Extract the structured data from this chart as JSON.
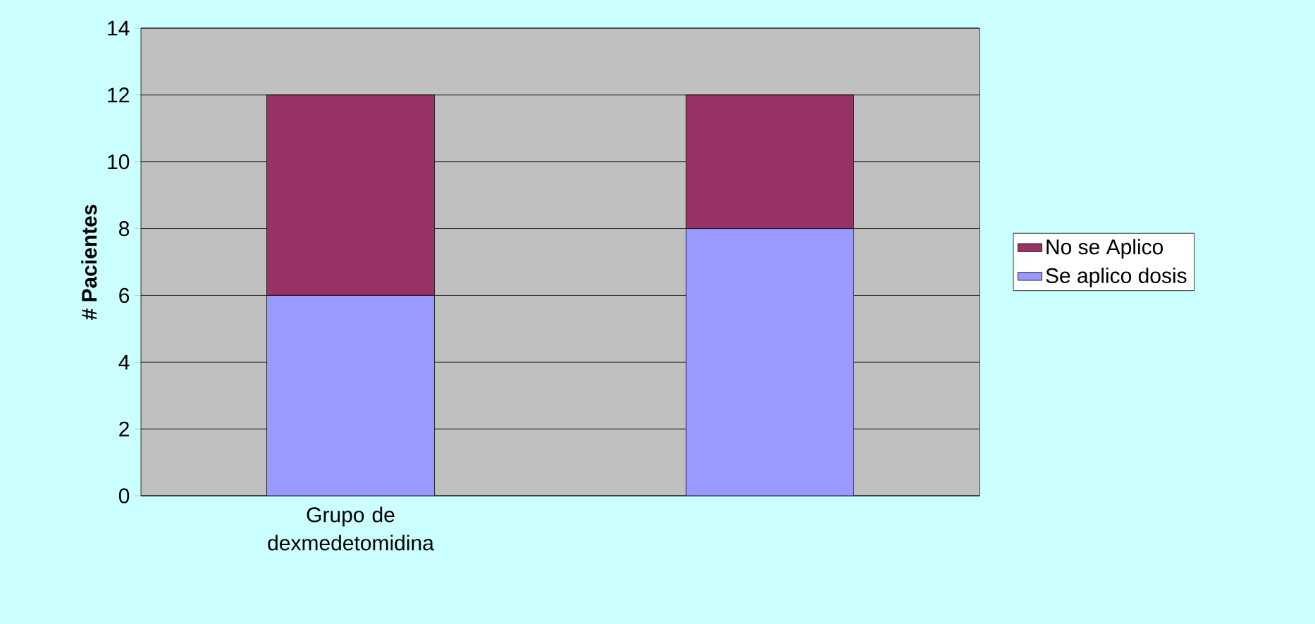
{
  "chart_data": {
    "type": "bar",
    "stacked": true,
    "ylabel": "# Pacientes",
    "categories": [
      "Grupo de dexmedetomidina",
      null
    ],
    "series": [
      {
        "name": "Se aplico dosis",
        "color": "#9999ff",
        "values": [
          6,
          8
        ]
      },
      {
        "name": "No se Aplico",
        "color": "#993366",
        "values": [
          6,
          4
        ]
      }
    ],
    "ylim": [
      0,
      14
    ],
    "yticks": [
      0,
      2,
      4,
      6,
      8,
      10,
      12,
      14
    ],
    "grid": "y",
    "legend": "right"
  }
}
